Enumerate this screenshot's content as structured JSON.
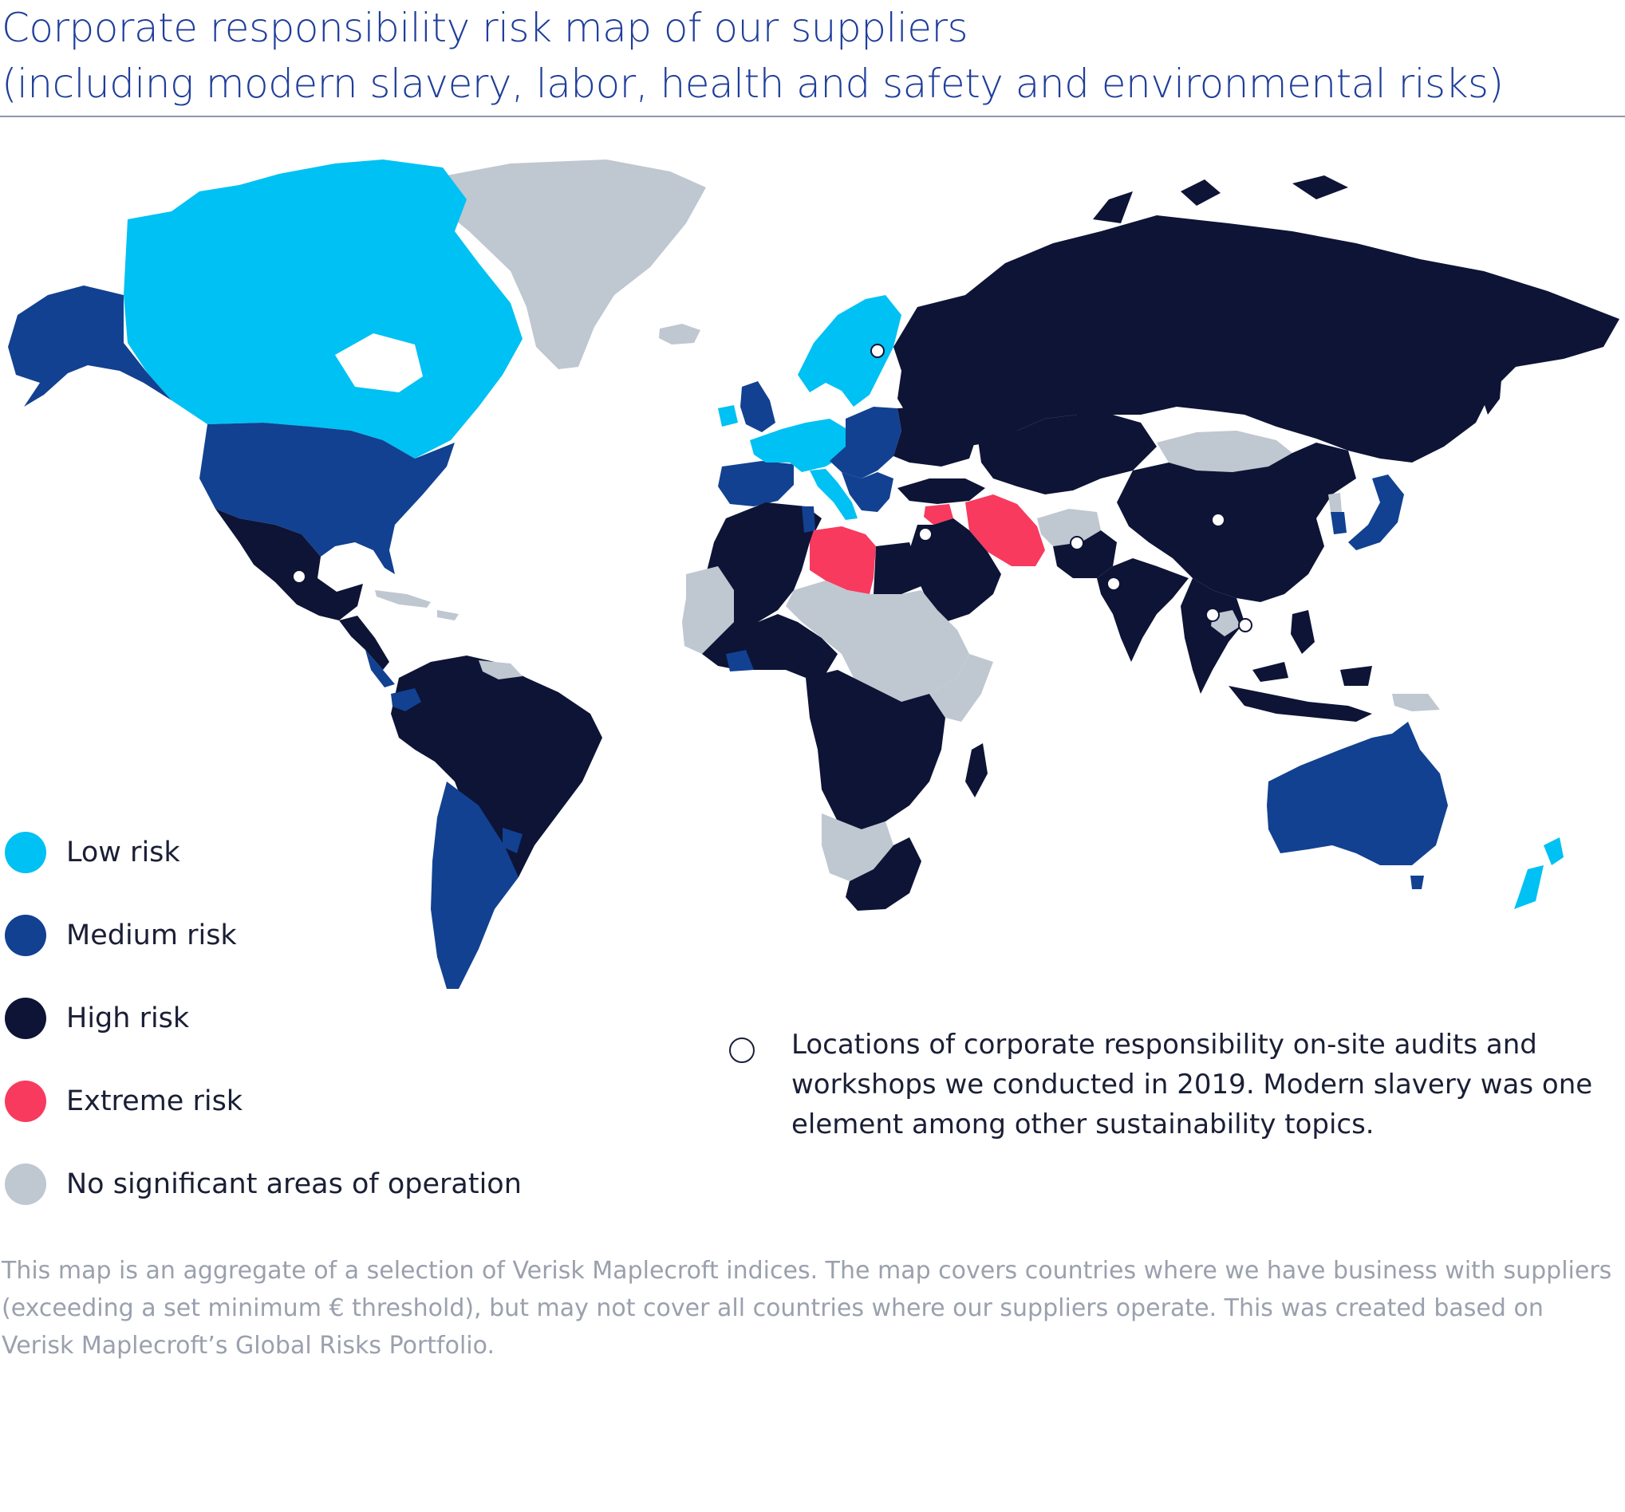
{
  "title": {
    "line1": "Corporate responsibility risk map of our suppliers",
    "line2": "(including modern slavery, labor, health and safety and environmental risks)"
  },
  "colors": {
    "low": "#00c1f3",
    "medium": "#124191",
    "high": "#0d1436",
    "extreme": "#f83a5e",
    "none": "#bfc7d1",
    "audit_marker": "#ffffff"
  },
  "legend": [
    {
      "key": "low",
      "label": "Low risk",
      "color": "#00c1f3"
    },
    {
      "key": "medium",
      "label": "Medium risk",
      "color": "#124191"
    },
    {
      "key": "high",
      "label": "High risk",
      "color": "#0d1436"
    },
    {
      "key": "extreme",
      "label": "Extreme risk",
      "color": "#f83a5e"
    },
    {
      "key": "none",
      "label": "No significant areas of operation",
      "color": "#bfc7d1"
    }
  ],
  "audit_note": {
    "text": "Locations of corporate responsibility on-site audits and workshops we conducted in 2019. Modern slavery was one element among other sustainability topics."
  },
  "footnote": "This map is an aggregate of a selection of Verisk Maplecroft indices. The map covers countries where we have business with suppliers (exceeding a set minimum € threshold), but may not cover all countries where our suppliers operate. This was created based on Verisk Maplecroft’s Global Risks Portfolio."
}
